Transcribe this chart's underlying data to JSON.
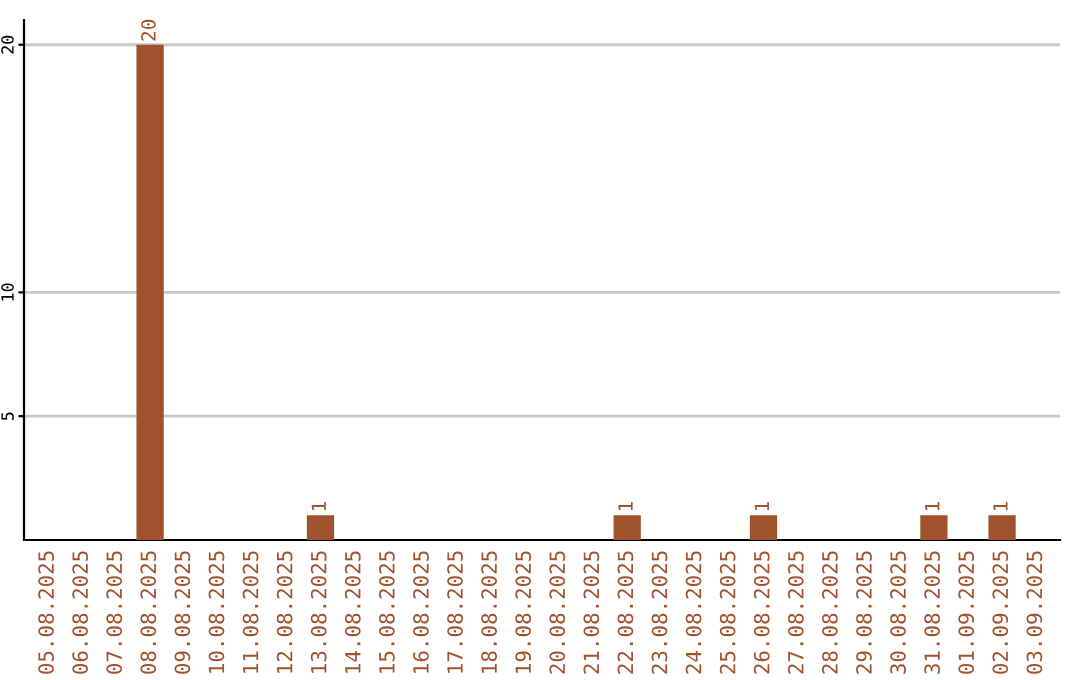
{
  "chart_data": {
    "type": "bar",
    "categories": [
      "05.08.2025",
      "06.08.2025",
      "07.08.2025",
      "08.08.2025",
      "09.08.2025",
      "10.08.2025",
      "11.08.2025",
      "12.08.2025",
      "13.08.2025",
      "14.08.2025",
      "15.08.2025",
      "16.08.2025",
      "17.08.2025",
      "18.08.2025",
      "19.08.2025",
      "20.08.2025",
      "21.08.2025",
      "22.08.2025",
      "23.08.2025",
      "24.08.2025",
      "25.08.2025",
      "26.08.2025",
      "27.08.2025",
      "28.08.2025",
      "29.08.2025",
      "30.08.2025",
      "31.08.2025",
      "01.09.2025",
      "02.09.2025",
      "03.09.2025"
    ],
    "values": [
      0,
      0,
      0,
      20,
      0,
      0,
      0,
      0,
      1,
      0,
      0,
      0,
      0,
      0,
      0,
      0,
      0,
      1,
      0,
      0,
      0,
      1,
      0,
      0,
      0,
      0,
      1,
      0,
      1,
      0
    ],
    "value_labels": [
      null,
      null,
      null,
      "20",
      null,
      null,
      null,
      null,
      "1",
      null,
      null,
      null,
      null,
      null,
      null,
      null,
      null,
      "1",
      null,
      null,
      null,
      "1",
      null,
      null,
      null,
      null,
      "1",
      null,
      "1",
      null
    ],
    "color": "#a0522d",
    "ylim": [
      0,
      21
    ],
    "yticks": [
      5,
      10,
      20
    ],
    "grid": "y"
  }
}
